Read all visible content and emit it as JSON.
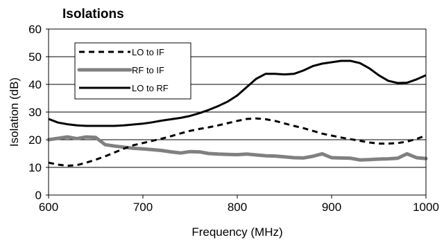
{
  "chart_data": {
    "type": "line",
    "title": "Isolations",
    "xlabel": "Frequency (MHz)",
    "ylabel": "Isolation (dB)",
    "xlim": [
      600,
      1000
    ],
    "ylim": [
      0,
      60
    ],
    "x_ticks": [
      "600",
      "700",
      "800",
      "900",
      "1000"
    ],
    "y_ticks": [
      "0",
      "10",
      "20",
      "30",
      "40",
      "50",
      "60"
    ],
    "grid": "horizontal",
    "legend_position": "top-left",
    "series": [
      {
        "name": "LO to IF",
        "style": "dashed",
        "color": "#000000",
        "x": [
          600,
          610,
          620,
          630,
          640,
          650,
          660,
          670,
          680,
          690,
          700,
          710,
          720,
          730,
          740,
          750,
          760,
          770,
          780,
          790,
          800,
          810,
          820,
          830,
          840,
          850,
          860,
          870,
          880,
          890,
          900,
          910,
          920,
          930,
          940,
          950,
          960,
          970,
          980,
          990,
          1000
        ],
        "y": [
          11.7,
          11.0,
          10.6,
          10.8,
          11.7,
          12.8,
          14.0,
          15.4,
          16.8,
          18.0,
          18.8,
          19.6,
          20.4,
          21.3,
          22.3,
          23.2,
          23.9,
          24.5,
          25.2,
          26.0,
          26.8,
          27.5,
          27.7,
          27.4,
          26.8,
          25.9,
          25.0,
          24.2,
          23.2,
          22.2,
          21.5,
          20.8,
          20.2,
          19.6,
          19.0,
          18.6,
          18.6,
          18.8,
          19.3,
          20.3,
          21.5
        ]
      },
      {
        "name": "RF to IF",
        "style": "thick",
        "color": "#808080",
        "x": [
          600,
          610,
          620,
          630,
          640,
          650,
          660,
          670,
          680,
          690,
          700,
          710,
          720,
          730,
          740,
          750,
          760,
          770,
          780,
          790,
          800,
          810,
          820,
          830,
          840,
          850,
          860,
          870,
          880,
          890,
          900,
          910,
          920,
          930,
          940,
          950,
          960,
          970,
          980,
          990,
          1000
        ],
        "y": [
          20.0,
          20.5,
          21.0,
          20.4,
          21.0,
          20.8,
          18.2,
          17.7,
          17.3,
          16.9,
          16.7,
          16.4,
          16.1,
          15.6,
          15.2,
          15.7,
          15.6,
          15.0,
          14.8,
          14.7,
          14.6,
          14.8,
          14.5,
          14.2,
          14.1,
          13.8,
          13.5,
          13.4,
          14.0,
          14.9,
          13.5,
          13.4,
          13.3,
          12.7,
          12.8,
          13.0,
          13.1,
          13.3,
          14.9,
          13.5,
          13.2
        ]
      },
      {
        "name": "LO to RF",
        "style": "solid",
        "color": "#000000",
        "x": [
          600,
          610,
          620,
          630,
          640,
          650,
          660,
          670,
          680,
          690,
          700,
          710,
          720,
          730,
          740,
          750,
          760,
          770,
          780,
          790,
          800,
          810,
          820,
          830,
          840,
          850,
          860,
          870,
          880,
          890,
          900,
          910,
          920,
          930,
          940,
          950,
          960,
          970,
          980,
          990,
          1000
        ],
        "y": [
          27.5,
          26.2,
          25.6,
          25.2,
          25.0,
          25.0,
          25.0,
          25.0,
          25.2,
          25.5,
          25.8,
          26.3,
          26.9,
          27.4,
          27.9,
          28.6,
          29.6,
          30.8,
          32.2,
          33.8,
          36.0,
          39.0,
          42.0,
          43.8,
          43.8,
          43.6,
          43.8,
          45.0,
          46.6,
          47.5,
          48.0,
          48.5,
          48.5,
          47.7,
          45.8,
          43.3,
          41.3,
          40.5,
          40.6,
          41.8,
          43.3
        ]
      }
    ]
  }
}
